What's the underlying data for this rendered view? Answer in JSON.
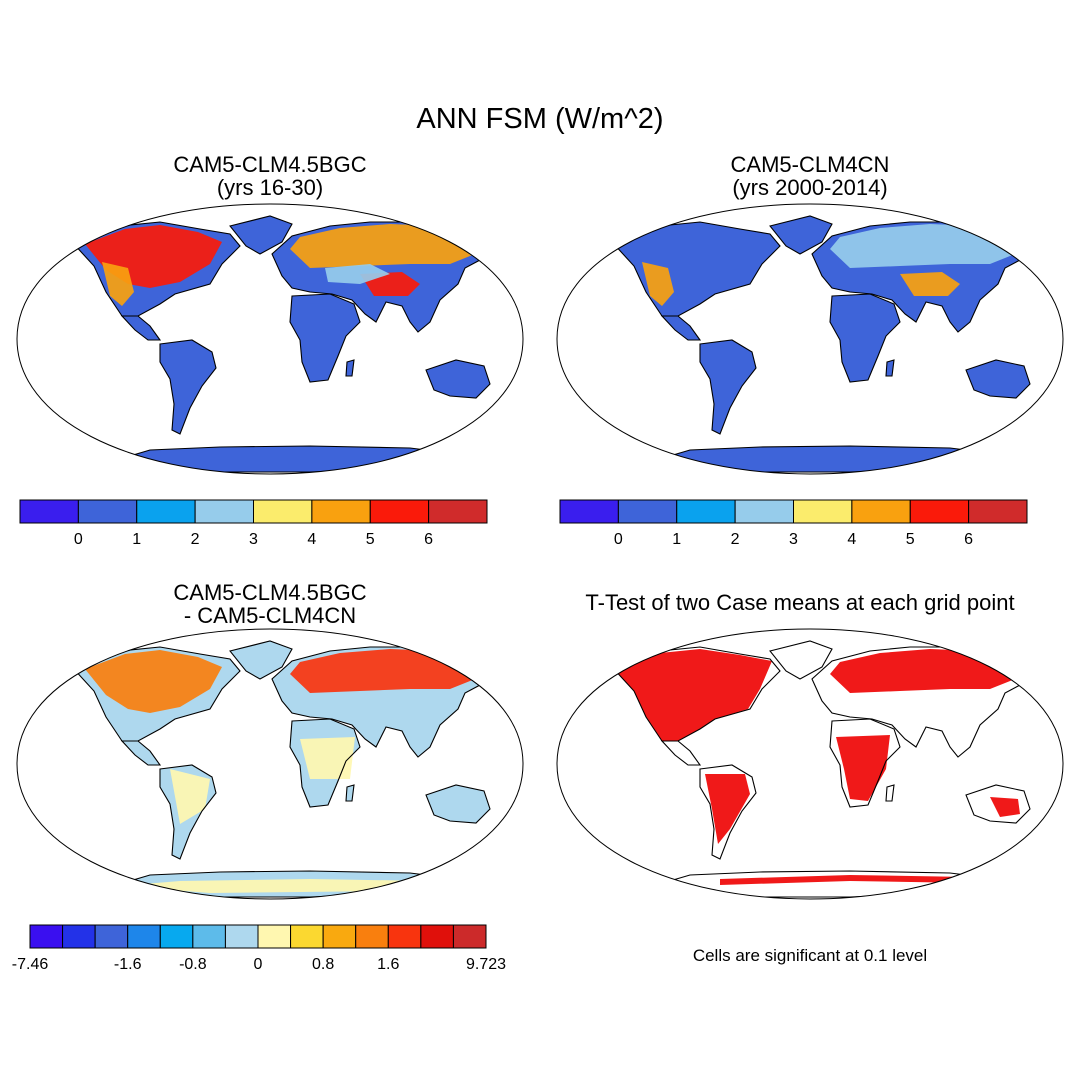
{
  "figure": {
    "title": "ANN FSM (W/m^2)",
    "significance_note": "Cells are significant at 0.1 level"
  },
  "panels": [
    {
      "title_line1": "CAM5-CLM4.5BGC",
      "title_line2": "(yrs 16-30)",
      "type": "field",
      "dominant_level": 1,
      "hotspots": [
        {
          "region": "northern-north-america",
          "level": 6
        },
        {
          "region": "western-north-america",
          "level": 5
        },
        {
          "region": "northern-eurasia",
          "level": 5
        },
        {
          "region": "tibetan-plateau",
          "level": 6
        },
        {
          "region": "central-asia",
          "level": 3
        }
      ]
    },
    {
      "title_line1": "CAM5-CLM4CN",
      "title_line2": "(yrs 2000-2014)",
      "type": "field",
      "dominant_level": 1,
      "hotspots": [
        {
          "region": "western-north-america",
          "level": 5
        },
        {
          "region": "northern-eurasia",
          "level": 3
        },
        {
          "region": "tibetan-plateau",
          "level": 5
        }
      ]
    },
    {
      "title_line1": "CAM5-CLM4.5BGC",
      "title_line2": "- CAM5-CLM4CN",
      "type": "difference",
      "dominant_level": 6,
      "hotspots": [
        {
          "region": "northern-north-america",
          "level": 10
        },
        {
          "region": "northern-eurasia",
          "level": 11
        },
        {
          "region": "tropics",
          "level": 7
        },
        {
          "region": "antarctica",
          "level": 7
        }
      ]
    },
    {
      "title_line1": "T-Test of two Case means at each grid point",
      "title_line2": "",
      "type": "significance",
      "significant_color": "#ee0000",
      "significant_regions": [
        "north-america",
        "northern-eurasia",
        "south-america",
        "africa",
        "australia",
        "antarctica-edge"
      ]
    }
  ],
  "colorbars": {
    "field": {
      "colors": [
        "#3a1eee",
        "#3e64d9",
        "#0aa2ee",
        "#96cceb",
        "#fbec6c",
        "#f9a10f",
        "#fa1a0a",
        "#d02b2b"
      ],
      "labels": [
        "0",
        "1",
        "2",
        "3",
        "4",
        "5",
        "6"
      ]
    },
    "difference": {
      "colors": [
        "#3a0ff0",
        "#2332e8",
        "#3e64d9",
        "#1e86ea",
        "#07a9ef",
        "#5dbbea",
        "#aed8ee",
        "#fff7b0",
        "#fbd830",
        "#f9a90f",
        "#f97f0e",
        "#f8340e",
        "#e0100b",
        "#cc2a2a"
      ],
      "labels": [
        "-7.46",
        "-1.6",
        "-0.8",
        "0",
        "0.8",
        "1.6",
        "9.723"
      ]
    }
  },
  "map": {
    "land_color": "#3e64d9",
    "ocean_color": "#ffffff",
    "coastline_color": "#000000"
  }
}
